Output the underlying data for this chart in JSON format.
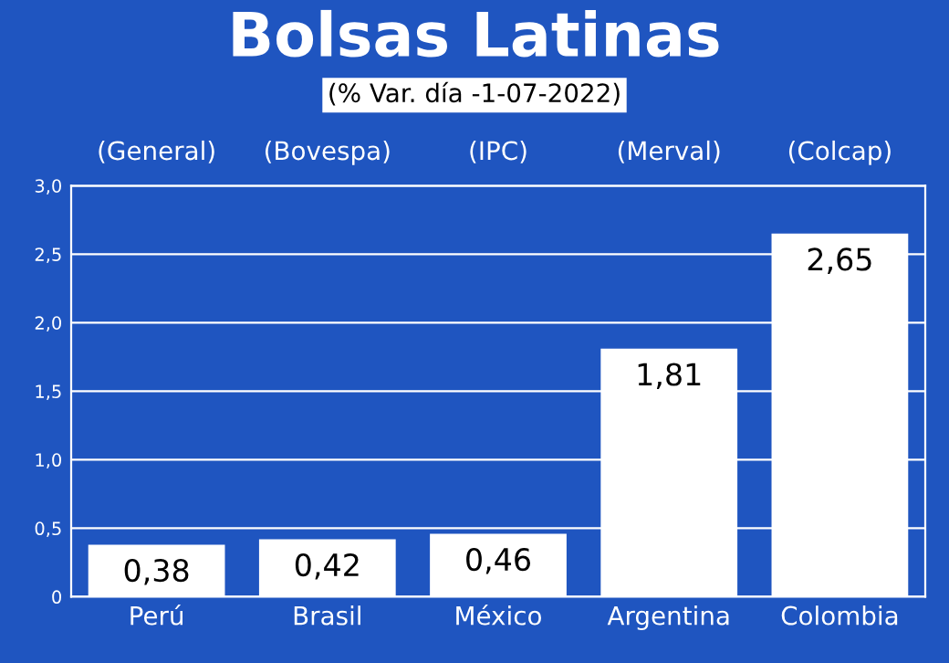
{
  "chart_data": {
    "type": "bar",
    "title": "Bolsas Latinas",
    "subtitle": "(% Var. día -1-07-2022)",
    "categories": [
      "Perú",
      "Brasil",
      "México",
      "Argentina",
      "Colombia"
    ],
    "values": [
      0.38,
      0.42,
      0.46,
      1.81,
      2.65
    ],
    "value_labels": [
      "0,38",
      "0,42",
      "0,46",
      "1,81",
      "2,65"
    ],
    "color": "#ffffff",
    "annotations": [
      "(General)",
      "(Bovespa)",
      "(IPC)",
      "(Merval)",
      "(Colcap)"
    ],
    "ylim": [
      0,
      3.0
    ],
    "yticks": [
      0,
      {
        "value": 0.5,
        "label": "0,5"
      },
      {
        "value": 1.0,
        "label": "1,0"
      },
      {
        "value": 1.5,
        "label": "1,5"
      },
      {
        "value": 2.0,
        "label": "2,0"
      },
      {
        "value": 2.5,
        "label": "2,5"
      },
      {
        "value": 3.0,
        "label": "3,0"
      }
    ],
    "grid": "y",
    "legend": false
  }
}
